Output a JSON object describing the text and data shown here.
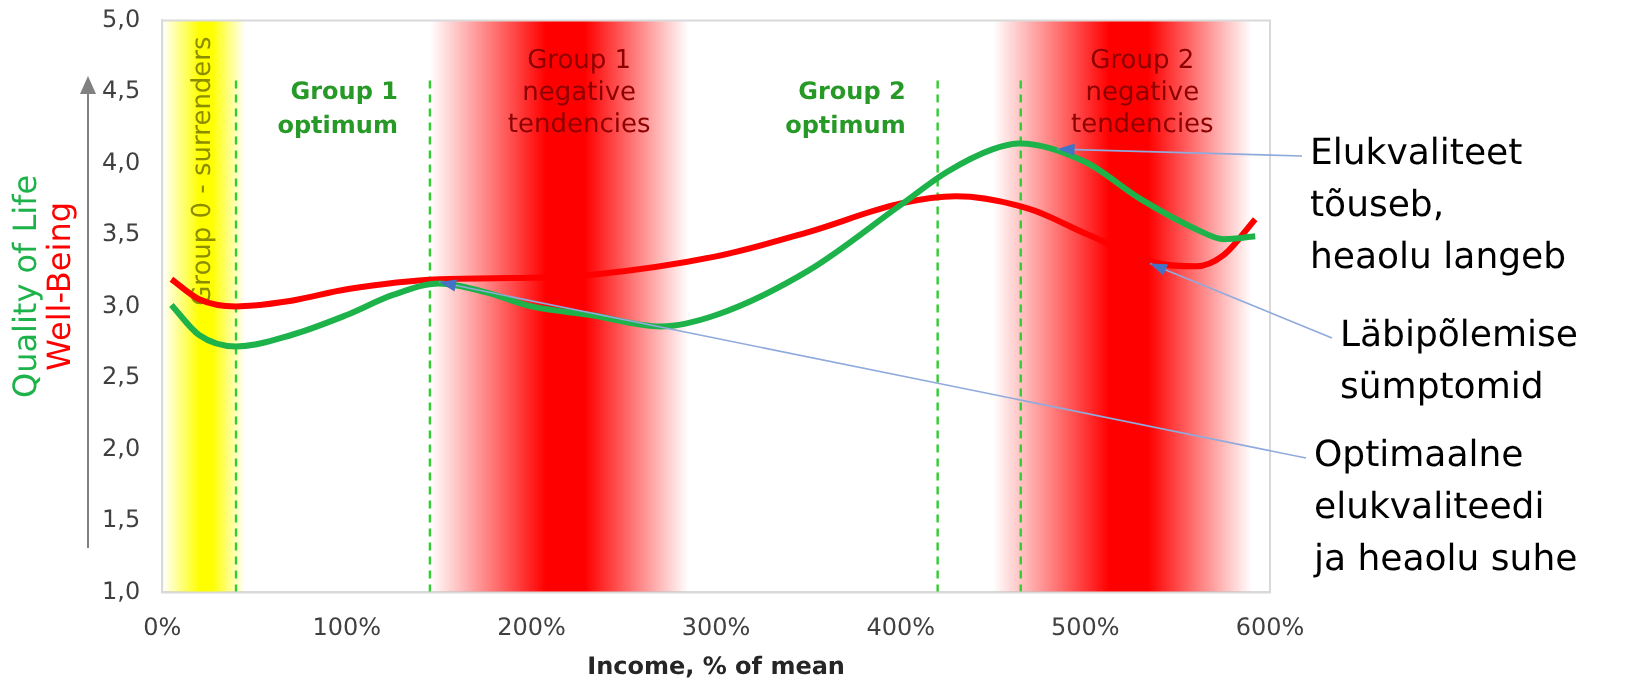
{
  "chart_data": {
    "type": "line",
    "xlabel": "Income, % of mean",
    "series": [
      {
        "name": "Quality of Life",
        "color": "#1db34a",
        "x": [
          5,
          20,
          40,
          70,
          100,
          125,
          150,
          175,
          200,
          232,
          270,
          300,
          350,
          400,
          425,
          450,
          465,
          500,
          530,
          560,
          575,
          592
        ],
        "values": [
          3.01,
          2.8,
          2.72,
          2.8,
          2.94,
          3.08,
          3.16,
          3.1,
          3.0,
          2.94,
          2.86,
          2.94,
          3.25,
          3.71,
          3.94,
          4.1,
          4.14,
          4.01,
          3.75,
          3.54,
          3.47,
          3.49
        ]
      },
      {
        "name": "Well-Being",
        "color": "#ff0000",
        "x": [
          5,
          20,
          40,
          70,
          100,
          150,
          200,
          232,
          300,
          350,
          400,
          430,
          470,
          500,
          540,
          560,
          575,
          592
        ],
        "values": [
          3.19,
          3.05,
          3.0,
          3.04,
          3.12,
          3.19,
          3.2,
          3.22,
          3.35,
          3.52,
          3.72,
          3.77,
          3.68,
          3.51,
          3.3,
          3.28,
          3.36,
          3.61
        ]
      }
    ],
    "xlim": [
      0,
      600
    ],
    "xticks": [
      {
        "value": 0,
        "label": "0%"
      },
      {
        "value": 100,
        "label": "100%"
      },
      {
        "value": 200,
        "label": "200%"
      },
      {
        "value": 300,
        "label": "300%"
      },
      {
        "value": 400,
        "label": "400%"
      },
      {
        "value": 500,
        "label": "500%"
      },
      {
        "value": 600,
        "label": "600%"
      }
    ],
    "ylim": [
      1,
      5
    ],
    "yticks": [
      {
        "value": 1,
        "label": "1,0"
      },
      {
        "value": 1.5,
        "label": "1,5"
      },
      {
        "value": 2,
        "label": "2,0"
      },
      {
        "value": 2.5,
        "label": "2,5"
      },
      {
        "value": 3,
        "label": "3,0"
      },
      {
        "value": 3.5,
        "label": "3,5"
      },
      {
        "value": 4,
        "label": "4,0"
      },
      {
        "value": 4.5,
        "label": "4,5"
      },
      {
        "value": 5,
        "label": "5,0"
      }
    ],
    "bands": [
      {
        "axis": "x",
        "from": 0,
        "to": 45,
        "label": "Group 0 - surrenders",
        "color": "#ffff00"
      },
      {
        "axis": "x",
        "from": 145,
        "to": 285,
        "label": "Group 1\nnegative\ntendencies",
        "color": "#ff0000"
      },
      {
        "axis": "x",
        "from": 450,
        "to": 590,
        "label": "Group 2\nnegative\ntendencies",
        "color": "#ff0000"
      }
    ],
    "ref_lines": [
      {
        "axis": "x",
        "value": 40,
        "color": "#33cc33",
        "line_style": "dashed"
      },
      {
        "axis": "x",
        "value": 145,
        "label": "Group 1\noptimum",
        "color": "#33cc33",
        "line_style": "dashed"
      },
      {
        "axis": "x",
        "value": 420,
        "label": "Group 2\noptimum",
        "color": "#33cc33",
        "line_style": "dashed"
      },
      {
        "axis": "x",
        "value": 465,
        "color": "#33cc33",
        "line_style": "dashed"
      }
    ],
    "annotations": [
      {
        "text": "Elukvaliteet\ntõuseb,\nheaolu langeb",
        "x": 485,
        "y": 4.1
      },
      {
        "text": "Läbipõlemise\nsümptomid",
        "x": 535,
        "y": 3.3
      },
      {
        "text": "Optimaalne\nelukvaliteedi\nja heaolu suhe",
        "x": 150,
        "y": 3.17
      }
    ],
    "grid": false,
    "legend": false,
    "marker": "none",
    "line_style": "solid"
  }
}
